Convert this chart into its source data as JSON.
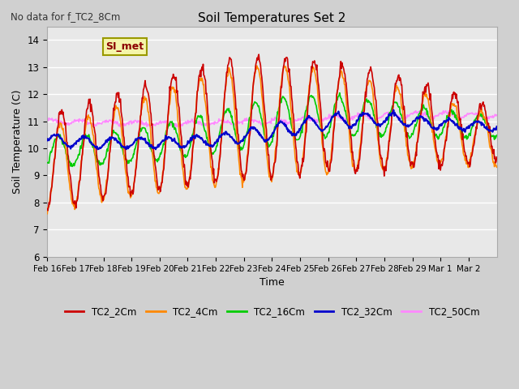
{
  "title": "Soil Temperatures Set 2",
  "subtitle": "No data for f_TC2_8Cm",
  "ylabel": "Soil Temperature (C)",
  "xlabel": "Time",
  "ylim": [
    6.0,
    14.5
  ],
  "yticks": [
    6.0,
    7.0,
    8.0,
    9.0,
    10.0,
    11.0,
    12.0,
    13.0,
    14.0
  ],
  "xtick_labels": [
    "Feb 16",
    "Feb 17",
    "Feb 18",
    "Feb 19",
    "Feb 20",
    "Feb 21",
    "Feb 22",
    "Feb 23",
    "Feb 24",
    "Feb 25",
    "Feb 26",
    "Feb 27",
    "Feb 28",
    "Feb 29",
    "Mar 1",
    "Mar 2"
  ],
  "series_colors": {
    "TC2_2Cm": "#cc0000",
    "TC2_4Cm": "#ff8800",
    "TC2_16Cm": "#00cc00",
    "TC2_32Cm": "#0000cc",
    "TC2_50Cm": "#ff88ff"
  },
  "legend_label": "SI_met",
  "background_color": "#e8e8e8",
  "grid_color": "#ffffff",
  "n_points": 768,
  "days": 16
}
